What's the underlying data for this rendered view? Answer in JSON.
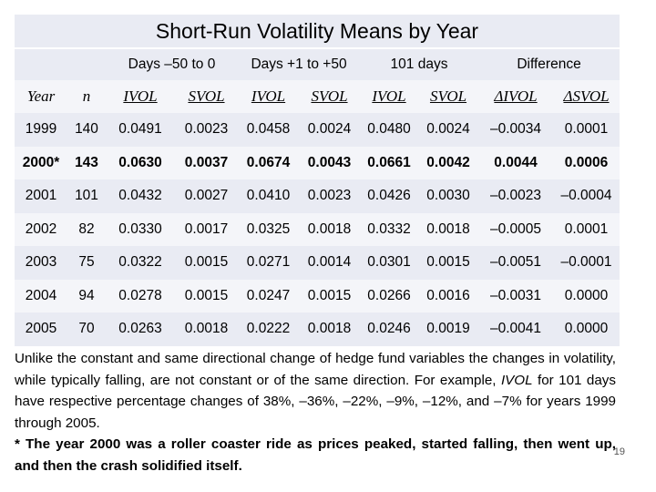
{
  "title": "Short-Run Volatility Means by Year",
  "headers_top": [
    "",
    "",
    "Days –50 to 0",
    "",
    "Days +1 to +50",
    "",
    "101 days",
    "",
    "Difference",
    ""
  ],
  "headers_sub": [
    "Year",
    "n",
    "IVOL",
    "SVOL",
    "IVOL",
    "SVOL",
    "IVOL",
    "SVOL",
    "ΔIVOL",
    "ΔSVOL"
  ],
  "rows": [
    [
      "1999",
      "140",
      "0.0491",
      "0.0023",
      "0.0458",
      "0.0024",
      "0.0480",
      "0.0024",
      "–0.0034",
      "0.0001"
    ],
    [
      "2000*",
      "143",
      "0.0630",
      "0.0037",
      "0.0674",
      "0.0043",
      "0.0661",
      "0.0042",
      "0.0044",
      "0.0006"
    ],
    [
      "2001",
      "101",
      "0.0432",
      "0.0027",
      "0.0410",
      "0.0023",
      "0.0426",
      "0.0030",
      "–0.0023",
      "–0.0004"
    ],
    [
      "2002",
      "82",
      "0.0330",
      "0.0017",
      "0.0325",
      "0.0018",
      "0.0332",
      "0.0018",
      "–0.0005",
      "0.0001"
    ],
    [
      "2003",
      "75",
      "0.0322",
      "0.0015",
      "0.0271",
      "0.0014",
      "0.0301",
      "0.0015",
      "–0.0051",
      "–0.0001"
    ],
    [
      "2004",
      "94",
      "0.0278",
      "0.0015",
      "0.0247",
      "0.0015",
      "0.0266",
      "0.0016",
      "–0.0031",
      "0.0000"
    ],
    [
      "2005",
      "70",
      "0.0263",
      "0.0018",
      "0.0222",
      "0.0018",
      "0.0246",
      "0.0019",
      "–0.0041",
      "0.0000"
    ]
  ],
  "footnote_1_pre": "Unlike the constant and same directional change of hedge fund variables the changes in volatility, while typically falling, are not constant or of the same direction. For example, ",
  "footnote_1_em": "IVOL",
  "footnote_1_post": " for 101 days have respective percentage changes of 38%, –36%, –22%, –9%, –12%, and –7% for years 1999 through 2005.",
  "footnote_2": "* The year 2000 was a roller coaster ride as prices peaked, started falling, then went up, and then the crash solidified itself.",
  "page_number": "19"
}
